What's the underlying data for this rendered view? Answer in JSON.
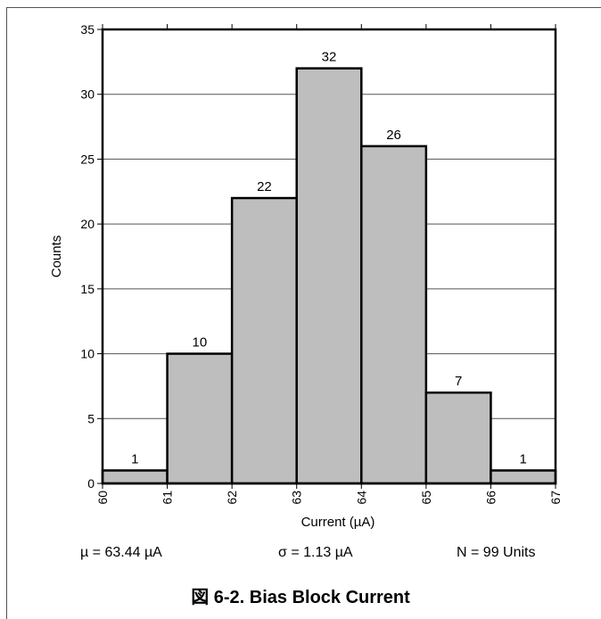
{
  "chart_data": {
    "type": "bar",
    "histogram": true,
    "bin_edges": [
      60,
      61,
      62,
      63,
      64,
      65,
      66,
      67
    ],
    "categories": [
      "60-61",
      "61-62",
      "62-63",
      "63-64",
      "64-65",
      "65-66",
      "66-67"
    ],
    "values": [
      1,
      10,
      22,
      32,
      26,
      7,
      1
    ],
    "data_labels": [
      "1",
      "10",
      "22",
      "32",
      "26",
      "7",
      "1"
    ],
    "xlabel": "Current (µA)",
    "ylabel": "Counts",
    "xlim": [
      60,
      67
    ],
    "ylim": [
      0,
      35
    ],
    "x_ticks": [
      "60",
      "61",
      "62",
      "63",
      "64",
      "65",
      "66",
      "67"
    ],
    "y_ticks": [
      "0",
      "5",
      "10",
      "15",
      "20",
      "25",
      "30",
      "35"
    ],
    "grid": "horizontal",
    "bar_color": "#bebebe",
    "legend": "none"
  },
  "stats": {
    "mu": "µ = 63.44 µA",
    "sigma": "σ = 1.13 µA",
    "n": "N = 99 Units"
  },
  "caption": "図 6-2. Bias Block Current"
}
